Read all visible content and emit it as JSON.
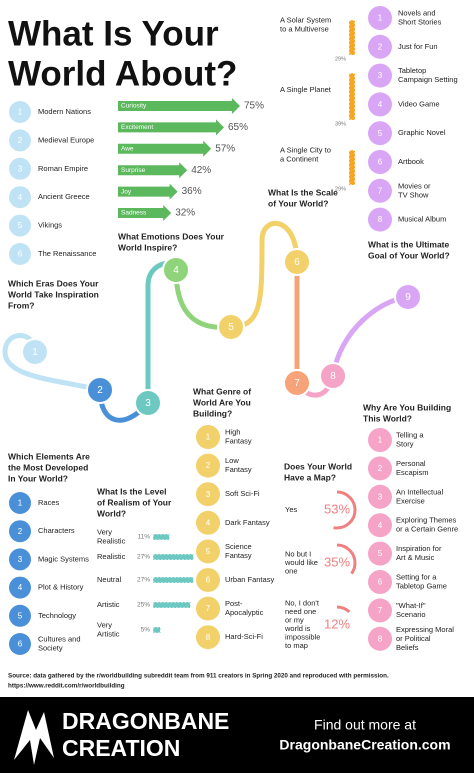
{
  "title": [
    "What Is Your",
    "World About?"
  ],
  "eras": {
    "heading": [
      "Which Eras Does Your",
      "World Take Inspiration",
      "From?"
    ],
    "step": 1,
    "items": [
      {
        "n": 1,
        "lines": [
          "Modern Nations"
        ]
      },
      {
        "n": 2,
        "lines": [
          "Medieval Europe"
        ]
      },
      {
        "n": 3,
        "lines": [
          "Roman Empire"
        ]
      },
      {
        "n": 4,
        "lines": [
          "Ancient Greece"
        ]
      },
      {
        "n": 5,
        "lines": [
          "Vikings"
        ]
      },
      {
        "n": 6,
        "lines": [
          "The Renaissance"
        ]
      }
    ]
  },
  "elements": {
    "heading": [
      "Which Elements Are",
      "the Most Developed",
      "In Your World?"
    ],
    "step": 2,
    "items": [
      {
        "n": 1,
        "lines": [
          "Races"
        ]
      },
      {
        "n": 2,
        "lines": [
          "Characters"
        ]
      },
      {
        "n": 3,
        "lines": [
          "Magic Systems"
        ]
      },
      {
        "n": 4,
        "lines": [
          "Plot & History"
        ]
      },
      {
        "n": 5,
        "lines": [
          "Technology"
        ]
      },
      {
        "n": 6,
        "lines": [
          "Cultures and",
          "Society"
        ]
      }
    ]
  },
  "realism": {
    "heading": [
      "What Is the Level",
      "of Realism of Your",
      "World?"
    ],
    "step": 3,
    "items": [
      {
        "lines": [
          "Very",
          "Realistic"
        ],
        "value": 11,
        "label": "11%"
      },
      {
        "lines": [
          "Realistic"
        ],
        "value": 27,
        "label": "27%"
      },
      {
        "lines": [
          "Neutral"
        ],
        "value": 27,
        "label": "27%"
      },
      {
        "lines": [
          "Artistic"
        ],
        "value": 25,
        "label": "25%"
      },
      {
        "lines": [
          "Very",
          "Artistic"
        ],
        "value": 5,
        "label": "5%"
      }
    ]
  },
  "emotions": {
    "heading": [
      "What Emotions Does Your",
      "World Inspire?"
    ],
    "step": 4,
    "items": [
      {
        "name": "Curiosity",
        "value": 75,
        "label": "75%"
      },
      {
        "name": "Excitement",
        "value": 65,
        "label": "65%"
      },
      {
        "name": "Awe",
        "value": 57,
        "label": "57%"
      },
      {
        "name": "Surprise",
        "value": 42,
        "label": "42%"
      },
      {
        "name": "Joy",
        "value": 36,
        "label": "36%"
      },
      {
        "name": "Sadness",
        "value": 32,
        "label": "32%"
      }
    ]
  },
  "genre": {
    "heading": [
      "What Genre of",
      "World Are You",
      "Building?"
    ],
    "step": 5,
    "items": [
      {
        "n": 1,
        "lines": [
          "High",
          "Fantasy"
        ]
      },
      {
        "n": 2,
        "lines": [
          "Low",
          "Fantasy"
        ]
      },
      {
        "n": 3,
        "lines": [
          "Soft Sci-Fi"
        ]
      },
      {
        "n": 4,
        "lines": [
          "Dark Fantasy"
        ]
      },
      {
        "n": 5,
        "lines": [
          "Science",
          "Fantasy"
        ]
      },
      {
        "n": 6,
        "lines": [
          "Urban Fantasy"
        ]
      },
      {
        "n": 7,
        "lines": [
          "Post-",
          "Apocalyptic"
        ]
      },
      {
        "n": 8,
        "lines": [
          "Hard-Sci-Fi"
        ]
      }
    ]
  },
  "scale": {
    "heading": [
      "What Is the Scale",
      "of Your World?"
    ],
    "step": 6,
    "items": [
      {
        "lines": [
          "A Solar System",
          "to a Multiverse"
        ],
        "value": 29,
        "label": "29%"
      },
      {
        "lines": [
          "A Single Planet"
        ],
        "value": 39,
        "label": "39%"
      },
      {
        "lines": [
          "A Single City to",
          "a Continent"
        ],
        "value": 29,
        "label": "29%"
      }
    ]
  },
  "map": {
    "heading": [
      "Does Your World",
      "Have a Map?"
    ],
    "step": 7,
    "items": [
      {
        "lines": [
          "Yes"
        ],
        "value": 53,
        "label": "53%"
      },
      {
        "lines": [
          "No but I",
          "would like",
          "one"
        ],
        "value": 35,
        "label": "35%"
      },
      {
        "lines": [
          "No, I don't",
          "need one",
          "or my",
          "world is",
          "impossible",
          "to map"
        ],
        "value": 12,
        "label": "12%"
      }
    ]
  },
  "why": {
    "heading": [
      "Why Are You Building",
      "This World?"
    ],
    "step": 8,
    "items": [
      {
        "n": 1,
        "lines": [
          "Telling a",
          "Story"
        ]
      },
      {
        "n": 2,
        "lines": [
          "Personal",
          "Escapism"
        ]
      },
      {
        "n": 3,
        "lines": [
          "An Intellectual",
          "Exercise"
        ]
      },
      {
        "n": 4,
        "lines": [
          "Exploring Themes",
          "or a Certain Genre"
        ]
      },
      {
        "n": 5,
        "lines": [
          "Inspiration for",
          "Art & Music"
        ]
      },
      {
        "n": 6,
        "lines": [
          "Setting for a",
          "Tabletop Game"
        ]
      },
      {
        "n": 7,
        "lines": [
          "\"What-If\"",
          "Scenario"
        ]
      },
      {
        "n": 8,
        "lines": [
          "Expressing Moral",
          "or Political",
          "Beliefs"
        ]
      }
    ]
  },
  "goal": {
    "heading": [
      "What is the Ultimate",
      "Goal of Your World?"
    ],
    "step": 9,
    "items": [
      {
        "n": 1,
        "lines": [
          "Novels and",
          "Short Stories"
        ]
      },
      {
        "n": 2,
        "lines": [
          "Just for Fun"
        ]
      },
      {
        "n": 3,
        "lines": [
          "Tabletop",
          "Campaign Setting"
        ]
      },
      {
        "n": 4,
        "lines": [
          "Video Game"
        ]
      },
      {
        "n": 5,
        "lines": [
          "Graphic Novel"
        ]
      },
      {
        "n": 6,
        "lines": [
          "Artbook"
        ]
      },
      {
        "n": 7,
        "lines": [
          "Movies or",
          "TV Show"
        ]
      },
      {
        "n": 8,
        "lines": [
          "Musical Album"
        ]
      }
    ]
  },
  "source": [
    "Source: data gathered by the r/worldbuilding subreddit team from 911 creators in Spring 2020 and reproduced with permission.",
    "https://www.reddit.com/r/worldbuilding"
  ],
  "footer": {
    "brand": [
      "DRAGONBANE",
      "CREATION"
    ],
    "cta": "Find out more at",
    "url": "DragonbaneCreation.com"
  }
}
